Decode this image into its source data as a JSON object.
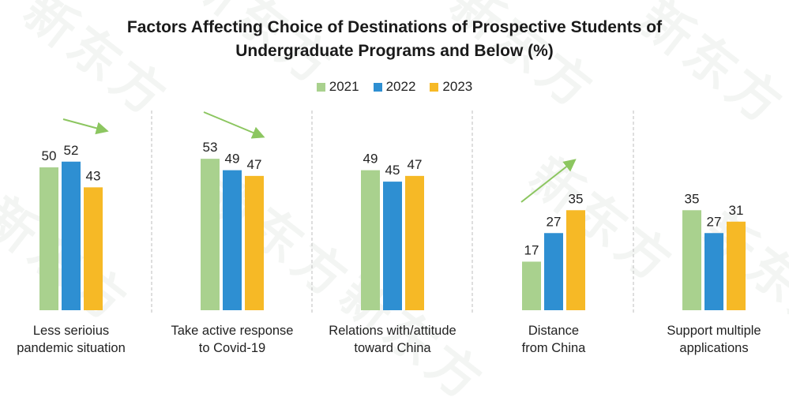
{
  "chart_data": {
    "type": "bar",
    "title_lines": [
      "Factors Affecting Choice of Destinations of Prospective Students of",
      "Undergraduate Programs and Below (%)"
    ],
    "xlabel": "",
    "ylabel": "",
    "ylim": [
      0,
      60
    ],
    "grid": false,
    "legend_position": "top-center",
    "categories": [
      [
        "Less serioius",
        "pandemic situation"
      ],
      [
        "Take active response",
        "to Covid-19"
      ],
      [
        "Relations with/attitude",
        "toward China"
      ],
      [
        "Distance",
        "from China"
      ],
      [
        "Support multiple",
        "applications"
      ]
    ],
    "series": [
      {
        "name": "2021",
        "color": "#a9d18e",
        "values": [
          50,
          53,
          49,
          17,
          35
        ]
      },
      {
        "name": "2022",
        "color": "#2e8fd2",
        "values": [
          52,
          49,
          45,
          27,
          27
        ]
      },
      {
        "name": "2023",
        "color": "#f6b926",
        "values": [
          43,
          47,
          47,
          35,
          31
        ]
      }
    ],
    "trend_arrows": [
      {
        "category_index": 0,
        "direction": "down",
        "color": "#8cc660"
      },
      {
        "category_index": 1,
        "direction": "down",
        "color": "#8cc660"
      },
      {
        "category_index": 3,
        "direction": "up",
        "color": "#8cc660"
      }
    ],
    "group_separators": "dashed"
  },
  "watermark": {
    "text": "新东方"
  }
}
